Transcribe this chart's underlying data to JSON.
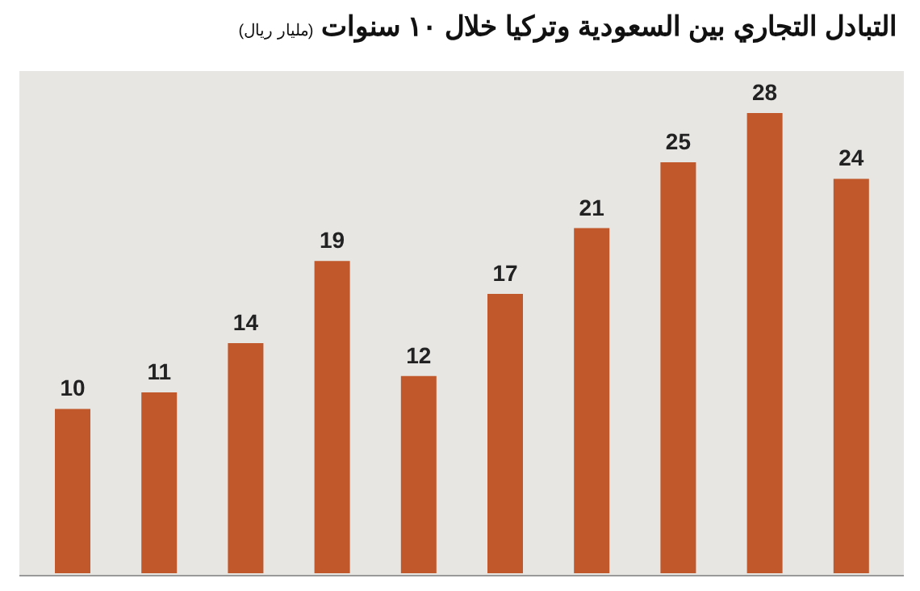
{
  "chart_data": {
    "type": "bar",
    "title": "التبادل التجاري بين السعودية وتركيا خلال ١٠ سنوات",
    "subtitle": "(مليار ريال)",
    "categories": [
      null,
      null,
      null,
      null,
      null,
      null,
      null,
      null,
      null,
      null
    ],
    "values": [
      10,
      11,
      14,
      19,
      12,
      17,
      21,
      25,
      28,
      24
    ],
    "color": "#c0582b",
    "data_labels": true,
    "tick_labels": false
  }
}
